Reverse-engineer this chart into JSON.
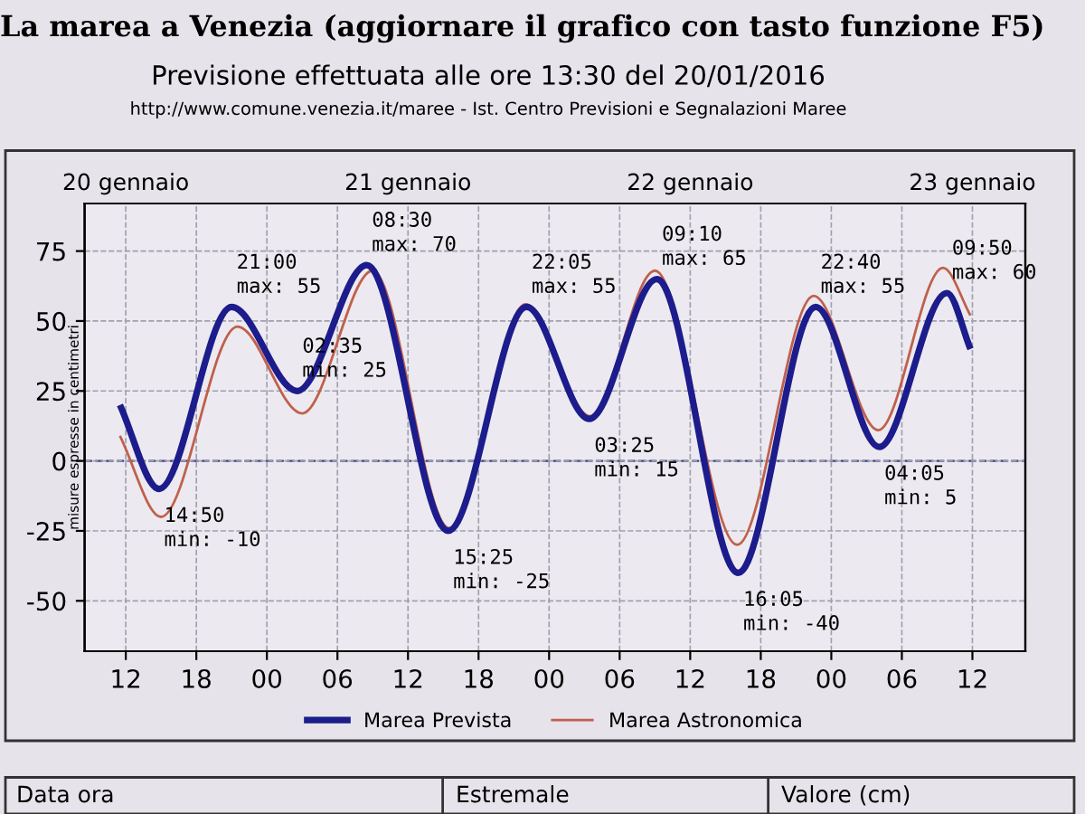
{
  "chart_data": {
    "type": "line",
    "title": "La marea a Venezia (aggiornare il grafico con tasto funzione F5)",
    "subtitle": "Previsione effettuata alle ore 13:30 del 20/01/2016",
    "ylabel": "misure espresse in centimetri",
    "series": [
      {
        "name": "Marea Prevista",
        "color": "#1c1c8c",
        "x": [
          "2016-01-20T11:30",
          "2016-01-20T14:50",
          "2016-01-20T21:00",
          "2016-01-21T02:35",
          "2016-01-21T08:30",
          "2016-01-21T15:25",
          "2016-01-21T22:05",
          "2016-01-22T03:25",
          "2016-01-22T09:10",
          "2016-01-22T16:05",
          "2016-01-22T22:40",
          "2016-01-23T04:05",
          "2016-01-23T09:50",
          "2016-01-23T11:50"
        ],
        "values": [
          20,
          -10,
          55,
          25,
          70,
          -25,
          55,
          15,
          65,
          -40,
          55,
          5,
          60,
          40
        ]
      },
      {
        "name": "Marea Astronomica",
        "color": "#c0604c",
        "x": [
          "2016-01-20T11:30",
          "2016-01-20T15:00",
          "2016-01-20T21:30",
          "2016-01-21T03:00",
          "2016-01-21T09:00",
          "2016-01-21T15:30",
          "2016-01-21T22:00",
          "2016-01-22T03:30",
          "2016-01-22T09:00",
          "2016-01-22T16:00",
          "2016-01-22T22:30",
          "2016-01-23T04:00",
          "2016-01-23T09:30",
          "2016-01-23T11:50"
        ],
        "values": [
          9,
          -20,
          48,
          17,
          68,
          -24,
          56,
          16,
          68,
          -30,
          59,
          11,
          69,
          52
        ]
      }
    ],
    "xlim": [
      "2016-01-20T08:30",
      "2016-01-23T16:30"
    ],
    "xticks": [
      {
        "value": "2016-01-20T12:00",
        "label": "12"
      },
      {
        "value": "2016-01-20T18:00",
        "label": "18"
      },
      {
        "value": "2016-01-21T00:00",
        "label": "00"
      },
      {
        "value": "2016-01-21T06:00",
        "label": "06"
      },
      {
        "value": "2016-01-21T12:00",
        "label": "12"
      },
      {
        "value": "2016-01-21T18:00",
        "label": "18"
      },
      {
        "value": "2016-01-22T00:00",
        "label": "00"
      },
      {
        "value": "2016-01-22T06:00",
        "label": "06"
      },
      {
        "value": "2016-01-22T12:00",
        "label": "12"
      },
      {
        "value": "2016-01-22T18:00",
        "label": "18"
      },
      {
        "value": "2016-01-23T00:00",
        "label": "00"
      },
      {
        "value": "2016-01-23T06:00",
        "label": "06"
      },
      {
        "value": "2016-01-23T12:00",
        "label": "12"
      }
    ],
    "x2lim": [
      "2016-01-20T08:30",
      "2016-01-23T16:30"
    ],
    "x2ticks": [
      {
        "value": "2016-01-20T12:00",
        "label": "20 gennaio"
      },
      {
        "value": "2016-01-21T12:00",
        "label": "21 gennaio"
      },
      {
        "value": "2016-01-22T12:00",
        "label": "22 gennaio"
      },
      {
        "value": "2016-01-23T12:00",
        "label": "23 gennaio"
      }
    ],
    "ylim": [
      -68,
      92
    ],
    "yticks": [
      -50,
      -25,
      0,
      25,
      50,
      75
    ],
    "grid": true,
    "legend": "bottom",
    "marker": "none",
    "ref_lines": [
      {
        "axis": "y",
        "value": 0,
        "color": "#404080",
        "line_style": "dashed"
      }
    ],
    "annotations": [
      "http://www.comune.venezia.it/maree - Ist. Centro Previsioni e Segnalazioni Maree",
      "Data ora",
      "Estremale",
      "Valore (cm)",
      {
        "text": "14:50\nmin: -10",
        "x": "2016-01-20T14:50",
        "y": -10
      },
      {
        "text": "21:00\nmax: 55",
        "x": "2016-01-20T21:00",
        "y": 55
      },
      {
        "text": "02:35\nmin: 25",
        "x": "2016-01-21T02:35",
        "y": 25
      },
      {
        "text": "08:30\nmax: 70",
        "x": "2016-01-21T08:30",
        "y": 70
      },
      {
        "text": "15:25\nmin: -25",
        "x": "2016-01-21T15:25",
        "y": -25
      },
      {
        "text": "22:05\nmax: 55",
        "x": "2016-01-21T22:05",
        "y": 55
      },
      {
        "text": "03:25\nmin: 15",
        "x": "2016-01-22T03:25",
        "y": 15
      },
      {
        "text": "09:10\nmax: 65",
        "x": "2016-01-22T09:10",
        "y": 65
      },
      {
        "text": "16:05\nmin: -40",
        "x": "2016-01-22T16:05",
        "y": -40
      },
      {
        "text": "22:40\nmax: 55",
        "x": "2016-01-22T22:40",
        "y": 55
      },
      {
        "text": "04:05\nmin: 5",
        "x": "2016-01-23T04:05",
        "y": 5
      },
      {
        "text": "09:50\nmax: 60",
        "x": "2016-01-23T09:50",
        "y": 60
      }
    ]
  }
}
